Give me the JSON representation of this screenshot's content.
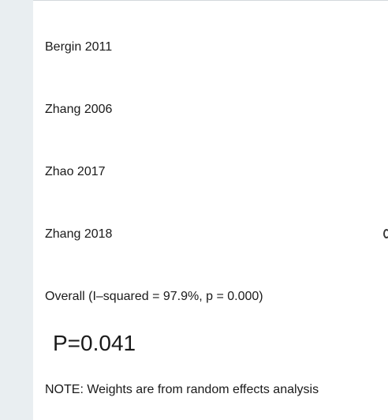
{
  "studies": [
    {
      "label": "Bergin 2011"
    },
    {
      "label": "Zhang 2006"
    },
    {
      "label": "Zhao 2017"
    },
    {
      "label": "Zhang 2018"
    }
  ],
  "overall": {
    "label": "Overall  (I–squared = 97.9%, p = 0.000)"
  },
  "p_value": {
    "text": "P=0.041"
  },
  "note": {
    "text": "NOTE: Weights are from random effects analysis"
  }
}
